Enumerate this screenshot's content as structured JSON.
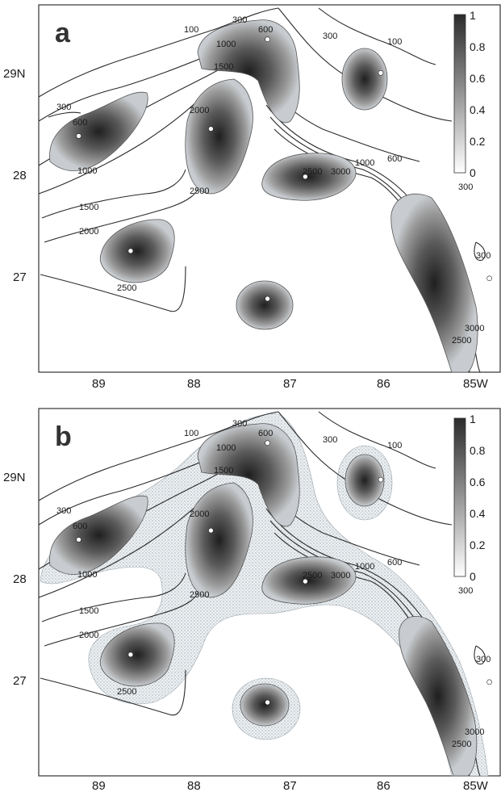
{
  "panels": [
    {
      "id": "a",
      "letter": "a",
      "lat_labels": [
        "29N",
        "28",
        "27"
      ],
      "lon_labels": [
        "89",
        "88",
        "87",
        "86",
        "85W"
      ],
      "colorbar_labels": [
        "1",
        "0.8",
        "0.6",
        "0.4",
        "0.2",
        "0"
      ],
      "contour_labels": [
        "100",
        "300",
        "600",
        "1000",
        "1500",
        "300",
        "600",
        "1000",
        "2000",
        "2500",
        "1500",
        "2000",
        "2500",
        "300",
        "100",
        "600",
        "1000",
        "2500",
        "3000",
        "300",
        "2500",
        "3000",
        "300"
      ],
      "sites": [
        {
          "lon": -89.2,
          "lat": 28.33
        },
        {
          "lon": -87.2,
          "lat": 29.28
        },
        {
          "lon": -86.0,
          "lat": 28.95
        },
        {
          "lon": -87.8,
          "lat": 28.4
        },
        {
          "lon": -86.8,
          "lat": 27.93
        },
        {
          "lon": -88.65,
          "lat": 27.2
        },
        {
          "lon": -87.2,
          "lat": 26.73
        },
        {
          "lon": -84.85,
          "lat": 26.93
        }
      ]
    },
    {
      "id": "b",
      "letter": "b",
      "lat_labels": [
        "29N",
        "28",
        "27"
      ],
      "lon_labels": [
        "89",
        "88",
        "87",
        "86",
        "85W"
      ],
      "colorbar_labels": [
        "1",
        "0.8",
        "0.6",
        "0.4",
        "0.2",
        "0"
      ],
      "contour_labels": [
        "100",
        "300",
        "600",
        "1000",
        "1500",
        "300",
        "600",
        "1000",
        "2000",
        "2500",
        "1500",
        "2000",
        "2500",
        "300",
        "100",
        "600",
        "1000",
        "2500",
        "3000",
        "300",
        "2500",
        "3000",
        "300"
      ],
      "sites": [
        {
          "lon": -89.2,
          "lat": 28.33
        },
        {
          "lon": -87.2,
          "lat": 29.28
        },
        {
          "lon": -86.0,
          "lat": 28.92
        },
        {
          "lon": -87.8,
          "lat": 28.42
        },
        {
          "lon": -86.8,
          "lat": 27.92
        },
        {
          "lon": -88.65,
          "lat": 27.2
        },
        {
          "lon": -87.2,
          "lat": 26.73
        },
        {
          "lon": -84.85,
          "lat": 26.93
        }
      ]
    }
  ],
  "colors": {
    "dense": "#2e2e2e",
    "mid": "#8c8c8c",
    "light": "#d6d6d6",
    "stipple": "#b9c2c9"
  }
}
